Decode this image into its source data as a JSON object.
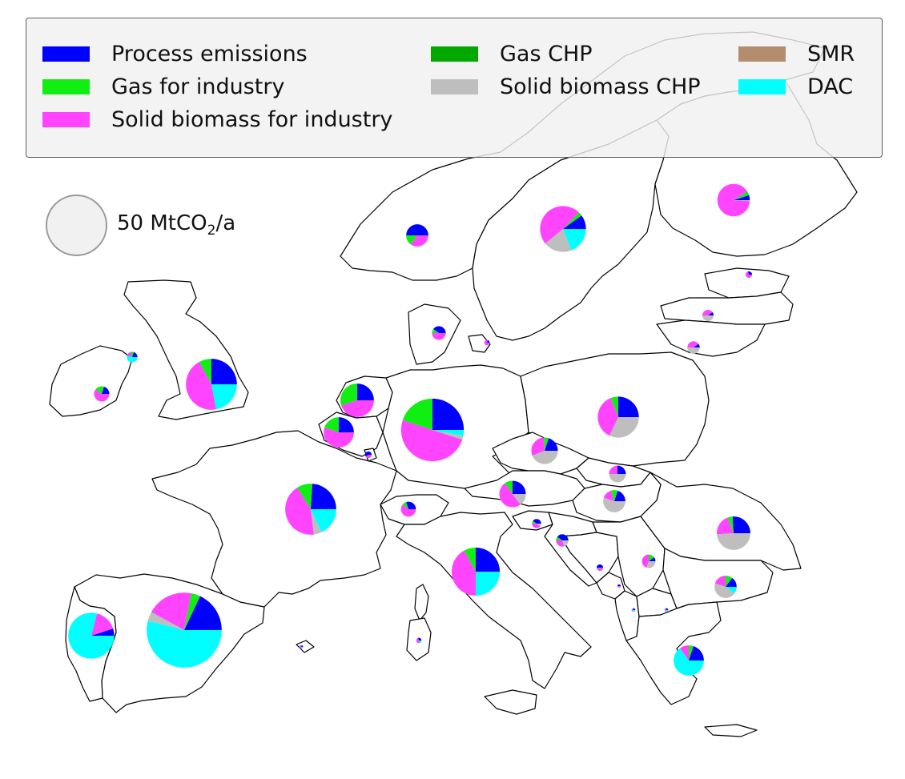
{
  "legend": {
    "items": [
      {
        "label": "Process emissions",
        "color": "#0000ff"
      },
      {
        "label": "Gas for industry",
        "color": "#11ee11"
      },
      {
        "label": "Solid biomass for industry",
        "color": "#ff44ff"
      },
      {
        "label": "Gas CHP",
        "color": "#00a800"
      },
      {
        "label": "Solid biomass CHP",
        "color": "#bebebe"
      },
      {
        "label": "SMR",
        "color": "#b48c6e"
      },
      {
        "label": "DAC",
        "color": "#00ffff"
      }
    ],
    "size_reference": {
      "value": "50",
      "unit_prefix": "MtCO",
      "unit_sub": "2",
      "unit_suffix": "/a"
    }
  },
  "map": {
    "land_color": "#ffffff",
    "border_color": "#000000"
  },
  "nodes": [
    {
      "id": "ES",
      "tons": 80,
      "shares": [
        0.18,
        0.04,
        0.2,
        0,
        0.04,
        0,
        0.54
      ]
    },
    {
      "id": "DE",
      "tons": 56,
      "shares": [
        0.25,
        0.2,
        0.5,
        0,
        0.02,
        0,
        0.03
      ]
    },
    {
      "id": "FR",
      "tons": 37,
      "shares": [
        0.24,
        0.1,
        0.43,
        0,
        0.05,
        0,
        0.18
      ]
    },
    {
      "id": "IT",
      "tons": 33,
      "shares": [
        0.25,
        0.08,
        0.42,
        0,
        0,
        0,
        0.25
      ]
    },
    {
      "id": "PT",
      "tons": 30,
      "shares": [
        0.05,
        0,
        0.16,
        0,
        0,
        0,
        0.79
      ]
    },
    {
      "id": "GB",
      "tons": 37,
      "shares": [
        0.25,
        0.08,
        0.45,
        0,
        0,
        0,
        0.22
      ]
    },
    {
      "id": "PL",
      "tons": 24,
      "shares": [
        0.25,
        0.06,
        0.37,
        0,
        0.32,
        0,
        0
      ]
    },
    {
      "id": "SE",
      "tons": 30,
      "shares": [
        0.1,
        0.03,
        0.48,
        0,
        0.2,
        0,
        0.19
      ]
    },
    {
      "id": "RO",
      "tons": 16,
      "shares": [
        0.26,
        0.05,
        0.2,
        0,
        0.49,
        0,
        0
      ]
    },
    {
      "id": "NL",
      "tons": 16,
      "shares": [
        0.25,
        0.3,
        0.45,
        0,
        0,
        0,
        0
      ]
    },
    {
      "id": "BE",
      "tons": 13,
      "shares": [
        0.25,
        0.2,
        0.55,
        0,
        0,
        0,
        0
      ]
    },
    {
      "id": "FI",
      "tons": 15,
      "shares": [
        0.05,
        0.04,
        0.9,
        0,
        0.01,
        0,
        0
      ]
    },
    {
      "id": "GR",
      "tons": 13,
      "shares": [
        0.2,
        0.05,
        0.1,
        0,
        0,
        0,
        0.65
      ]
    },
    {
      "id": "AT",
      "tons": 10,
      "shares": [
        0.25,
        0.1,
        0.5,
        0,
        0.15,
        0,
        0
      ]
    },
    {
      "id": "CZ",
      "tons": 10,
      "shares": [
        0.2,
        0.06,
        0.3,
        0,
        0.44,
        0,
        0
      ]
    },
    {
      "id": "NO",
      "tons": 7,
      "shares": [
        0.5,
        0.15,
        0.35,
        0,
        0,
        0,
        0
      ]
    },
    {
      "id": "BG",
      "tons": 7,
      "shares": [
        0.15,
        0.1,
        0.2,
        0,
        0.45,
        0,
        0.1
      ]
    },
    {
      "id": "HU",
      "tons": 7,
      "shares": [
        0.2,
        0.1,
        0.15,
        0,
        0.55,
        0,
        0
      ]
    },
    {
      "id": "IE",
      "tons": 3.3,
      "shares": [
        0.2,
        0.2,
        0.6,
        0,
        0,
        0,
        0
      ]
    },
    {
      "id": "CH",
      "tons": 3.2,
      "shares": [
        0.3,
        0.1,
        0.6,
        0,
        0,
        0,
        0
      ]
    },
    {
      "id": "SK",
      "tons": 4,
      "shares": [
        0.25,
        0,
        0.25,
        0,
        0.5,
        0,
        0
      ]
    },
    {
      "id": "DK",
      "tons": 2.7,
      "shares": [
        0.4,
        0.1,
        0.5,
        0,
        0,
        0,
        0
      ]
    },
    {
      "id": "RS",
      "tons": 2.6,
      "shares": [
        0.1,
        0.15,
        0.45,
        0,
        0.3,
        0,
        0
      ]
    },
    {
      "id": "LV",
      "tons": 1.8,
      "shares": [
        0.1,
        0,
        0.4,
        0,
        0.5,
        0,
        0
      ]
    },
    {
      "id": "LT",
      "tons": 2.2,
      "shares": [
        0.1,
        0,
        0.4,
        0,
        0.5,
        0,
        0
      ]
    },
    {
      "id": "HR",
      "tons": 2.2,
      "shares": [
        0.4,
        0.1,
        0.3,
        0,
        0.2,
        0,
        0
      ]
    },
    {
      "id": "NI",
      "tons": 1.6,
      "shares": [
        0.2,
        0.1,
        0.15,
        0,
        0,
        0,
        0.55
      ]
    },
    {
      "id": "SI",
      "tons": 1.2,
      "shares": [
        0.4,
        0.1,
        0.4,
        0,
        0.1,
        0,
        0
      ]
    },
    {
      "id": "BA",
      "tons": 0.6,
      "shares": [
        0.5,
        0.1,
        0.4,
        0,
        0,
        0,
        0
      ]
    },
    {
      "id": "LU",
      "tons": 0.6,
      "shares": [
        0.6,
        0,
        0.4,
        0,
        0,
        0,
        0
      ]
    },
    {
      "id": "EE",
      "tons": 0.6,
      "shares": [
        0.3,
        0,
        0.7,
        0,
        0,
        0,
        0
      ]
    },
    {
      "id": "ME",
      "tons": 0.1,
      "shares": [
        0.5,
        0,
        0.5,
        0,
        0,
        0,
        0
      ]
    },
    {
      "id": "AL",
      "tons": 0.2,
      "shares": [
        0.3,
        0,
        0.3,
        0,
        0,
        0,
        0.4
      ]
    },
    {
      "id": "MK",
      "tons": 0.2,
      "shares": [
        0.3,
        0,
        0.3,
        0,
        0.2,
        0,
        0.2
      ]
    },
    {
      "id": "SE2",
      "tons": 0.4,
      "shares": [
        0.2,
        0,
        0.8,
        0,
        0,
        0,
        0
      ]
    },
    {
      "id": "SAR",
      "tons": 0.4,
      "shares": [
        0.3,
        0,
        0.5,
        0,
        0,
        0,
        0.2
      ]
    },
    {
      "id": "BAL",
      "tons": 0.2,
      "shares": [
        0.2,
        0,
        0.6,
        0,
        0,
        0,
        0.2
      ]
    }
  ]
}
